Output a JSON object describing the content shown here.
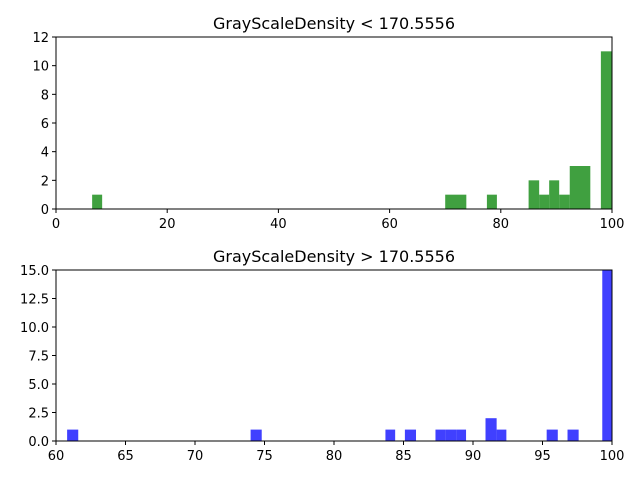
{
  "chart_data": [
    {
      "type": "bar",
      "title": "GrayScaleDensity < 170.5556",
      "color": "#008000",
      "opacity": 0.75,
      "xlim": [
        0,
        100
      ],
      "ylim": [
        0,
        12
      ],
      "xticks": [
        0,
        20,
        40,
        60,
        80,
        100
      ],
      "yticks": [
        0,
        2,
        4,
        6,
        8,
        10,
        12
      ],
      "xtick_labels": [
        "0",
        "20",
        "40",
        "60",
        "80",
        "100"
      ],
      "ytick_labels": [
        "0",
        "2",
        "4",
        "6",
        "8",
        "10",
        "12"
      ],
      "bars": [
        {
          "x0": 6.5,
          "x1": 8.3,
          "count": 1
        },
        {
          "x0": 70.0,
          "x1": 73.8,
          "count": 1
        },
        {
          "x0": 77.5,
          "x1": 79.3,
          "count": 1
        },
        {
          "x0": 85.0,
          "x1": 86.9,
          "count": 2
        },
        {
          "x0": 86.9,
          "x1": 88.7,
          "count": 1
        },
        {
          "x0": 88.7,
          "x1": 90.5,
          "count": 2
        },
        {
          "x0": 90.5,
          "x1": 92.4,
          "count": 1
        },
        {
          "x0": 92.4,
          "x1": 96.1,
          "count": 3
        },
        {
          "x0": 98.0,
          "x1": 100.0,
          "count": 11
        }
      ]
    },
    {
      "type": "bar",
      "title": "GrayScaleDensity > 170.5556",
      "color": "#0000ff",
      "opacity": 0.75,
      "xlim": [
        60,
        100
      ],
      "ylim": [
        0,
        15
      ],
      "xticks": [
        60,
        65,
        70,
        75,
        80,
        85,
        90,
        95,
        100
      ],
      "yticks": [
        0,
        2.5,
        5,
        7.5,
        10,
        12.5,
        15
      ],
      "xtick_labels": [
        "60",
        "65",
        "70",
        "75",
        "80",
        "85",
        "90",
        "95",
        "100"
      ],
      "ytick_labels": [
        "0.0",
        "2.5",
        "5.0",
        "7.5",
        "10.0",
        "12.5",
        "15.0"
      ],
      "bars": [
        {
          "x0": 60.8,
          "x1": 61.6,
          "count": 1
        },
        {
          "x0": 74.0,
          "x1": 74.8,
          "count": 1
        },
        {
          "x0": 83.7,
          "x1": 84.4,
          "count": 1
        },
        {
          "x0": 85.1,
          "x1": 85.9,
          "count": 1
        },
        {
          "x0": 87.3,
          "x1": 88.0,
          "count": 1
        },
        {
          "x0": 88.0,
          "x1": 88.8,
          "count": 1
        },
        {
          "x0": 88.8,
          "x1": 89.5,
          "count": 1
        },
        {
          "x0": 90.9,
          "x1": 91.7,
          "count": 2
        },
        {
          "x0": 91.7,
          "x1": 92.4,
          "count": 1
        },
        {
          "x0": 95.3,
          "x1": 96.1,
          "count": 1
        },
        {
          "x0": 96.8,
          "x1": 97.6,
          "count": 1
        },
        {
          "x0": 99.3,
          "x1": 100.0,
          "count": 15
        }
      ]
    }
  ]
}
